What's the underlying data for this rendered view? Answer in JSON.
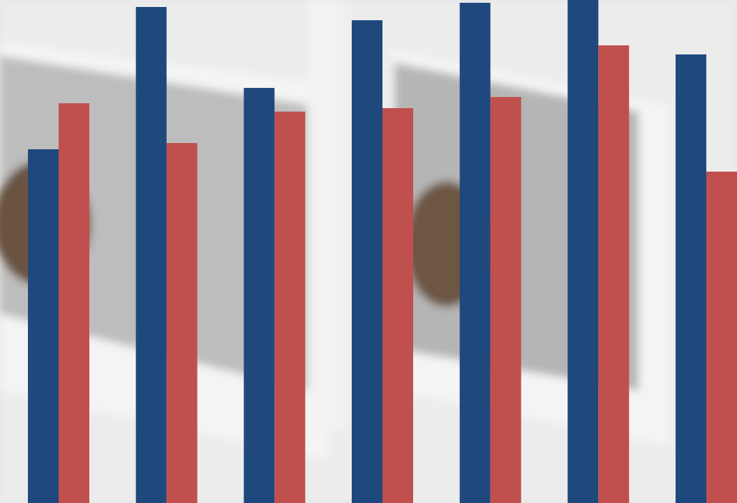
{
  "chart_data": {
    "type": "bar",
    "categories": [
      null,
      null,
      null,
      null,
      null,
      null,
      null
    ],
    "series": [
      {
        "color": "#1f497d",
        "values": [
          507,
          711,
          595,
          692,
          717,
          721,
          643
        ]
      },
      {
        "color": "#c0504d",
        "values": [
          573,
          516,
          561,
          566,
          582,
          656,
          475
        ]
      }
    ],
    "ylim": [
      0,
      721
    ],
    "grid": false
  }
}
